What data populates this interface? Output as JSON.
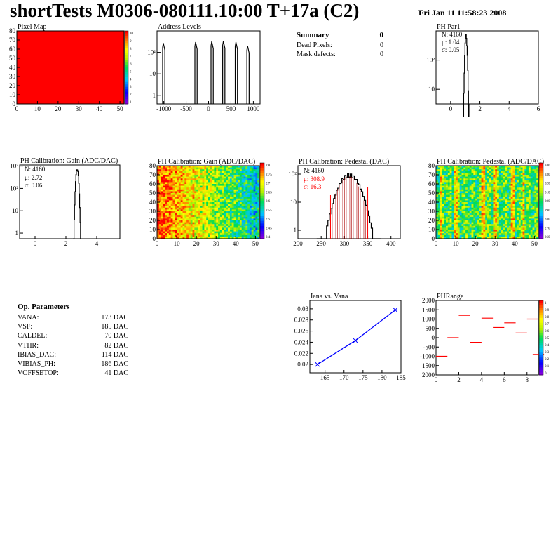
{
  "page": {
    "title": "shortTests M0306-080111.10:00 T+17a (C2)",
    "timestamp": "Fri Jan 11 11:58:23 2008"
  },
  "summary": {
    "title": "Summary",
    "count": "0",
    "rows": [
      {
        "label": "Dead Pixels:",
        "value": "0"
      },
      {
        "label": "Mask defects:",
        "value": "0"
      }
    ]
  },
  "op_params": {
    "title": "Op. Parameters",
    "rows": [
      {
        "name": "VANA:",
        "value": "173 DAC"
      },
      {
        "name": "VSF:",
        "value": "185 DAC"
      },
      {
        "name": "CALDEL:",
        "value": "70 DAC"
      },
      {
        "name": "VTHR:",
        "value": "82 DAC"
      },
      {
        "name": "IBIAS_DAC:",
        "value": "114 DAC"
      },
      {
        "name": "VIBIAS_PH:",
        "value": "186 DAC"
      },
      {
        "name": "VOFFSETOP:",
        "value": "41 DAC"
      }
    ]
  },
  "colors": {
    "frame": "#000000",
    "red": "#ff0000",
    "blue": "#0000ff",
    "dark_red": "#aa0000"
  },
  "chart_data": [
    {
      "id": "pixel_map",
      "type": "heatmap",
      "title": "Pixel Map",
      "xlim": [
        0,
        52
      ],
      "ylim": [
        0,
        80
      ],
      "xticks": [
        "0",
        "10",
        "20",
        "30",
        "40",
        "50"
      ],
      "yticks": [
        "0",
        "10",
        "20",
        "30",
        "40",
        "50",
        "60",
        "70",
        "80"
      ],
      "uniform_value": 10,
      "zticks": [
        "10",
        "9",
        "8",
        "7",
        "6",
        "5",
        "4",
        "3",
        "2",
        "1"
      ]
    },
    {
      "id": "address_levels",
      "type": "bar",
      "title": "Address Levels",
      "log_y": true,
      "xlim": [
        -1150,
        1150
      ],
      "xticks": [
        "-1000",
        "-500",
        "0",
        "500",
        "1000"
      ],
      "yticks": [
        "1",
        "10",
        "10²"
      ],
      "peaks": [
        {
          "x": -1000,
          "height": 270
        },
        {
          "x": -280,
          "height": 300
        },
        {
          "x": 80,
          "height": 320
        },
        {
          "x": 340,
          "height": 330
        },
        {
          "x": 620,
          "height": 300
        },
        {
          "x": 880,
          "height": 200
        }
      ]
    },
    {
      "id": "ph_par1",
      "type": "bar",
      "title": "PH Par1",
      "log_y": true,
      "xlim": [
        -1,
        6
      ],
      "xticks": [
        "0",
        "2",
        "4",
        "6"
      ],
      "yticks": [
        "10",
        "10²"
      ],
      "stats": {
        "n": "N: 4160",
        "mu": "μ: 1.04",
        "sigma": "σ: 0.05"
      },
      "mean": 1.04,
      "sigma_value": 0.05,
      "peak": 700
    },
    {
      "id": "gain_1d",
      "type": "bar",
      "title": "PH Calibration: Gain (ADC/DAC)",
      "log_y": true,
      "xlim": [
        -1,
        5.5
      ],
      "xticks": [
        "0",
        "2",
        "4"
      ],
      "yticks": [
        "1",
        "10",
        "10²",
        "10³"
      ],
      "stats": {
        "n": "N: 4160",
        "mu": "μ: 2.72",
        "sigma": "σ: 0.06"
      },
      "mean": 2.72,
      "sigma_value": 0.06,
      "peak": 750
    },
    {
      "id": "gain_2d",
      "type": "heatmap",
      "title": "PH Calibration: Gain (ADC/DAC)",
      "xlim": [
        0,
        52
      ],
      "ylim": [
        0,
        80
      ],
      "xticks": [
        "0",
        "10",
        "20",
        "30",
        "40",
        "50"
      ],
      "yticks": [
        "0",
        "10",
        "20",
        "30",
        "40",
        "50",
        "60",
        "70",
        "80"
      ],
      "zticks": [
        "2.8",
        "2.75",
        "2.7",
        "2.65",
        "2.6",
        "2.55",
        "2.5",
        "2.45",
        "2.4"
      ]
    },
    {
      "id": "pedestal_1d",
      "type": "bar",
      "title": "PH Calibration: Pedestal (DAC)",
      "log_y": true,
      "xlim": [
        200,
        420
      ],
      "xticks": [
        "200",
        "250",
        "300",
        "350",
        "400"
      ],
      "yticks": [
        "1",
        "10",
        "10²"
      ],
      "stats": {
        "n": "N: 4160",
        "mu": "μ: 308.9",
        "sigma": "σ: 16.3"
      },
      "mean": 308.9,
      "sigma_value": 16.3,
      "peak": 90,
      "fit_range": [
        270,
        350
      ]
    },
    {
      "id": "pedestal_2d",
      "type": "heatmap",
      "title": "PH Calibration: Pedestal (ADC/DAC)",
      "xlim": [
        0,
        52
      ],
      "ylim": [
        0,
        80
      ],
      "xticks": [
        "0",
        "10",
        "20",
        "30",
        "40",
        "50"
      ],
      "yticks": [
        "0",
        "10",
        "20",
        "30",
        "40",
        "50",
        "60",
        "70",
        "80"
      ],
      "zticks": [
        "340",
        "330",
        "320",
        "310",
        "300",
        "290",
        "280",
        "270",
        "260"
      ]
    },
    {
      "id": "iana_vana",
      "type": "line",
      "title": "Iana vs. Vana",
      "xlim": [
        161,
        185
      ],
      "ylim": [
        0.0185,
        0.0315
      ],
      "xticks": [
        "165",
        "170",
        "175",
        "180",
        "185"
      ],
      "yticks": [
        "0.02",
        "0.022",
        "0.024",
        "0.026",
        "0.028",
        "0.03"
      ],
      "x": [
        163,
        173,
        183.5
      ],
      "y": [
        0.02,
        0.0243,
        0.0298
      ]
    },
    {
      "id": "ph_range",
      "type": "heatmap",
      "title": "PHRange",
      "xlim": [
        0,
        9
      ],
      "ylim": [
        -2000,
        2000
      ],
      "xticks": [
        "0",
        "2",
        "4",
        "6",
        "8"
      ],
      "yticks": [
        "2000",
        "1500",
        "1000",
        "500",
        "0",
        "-500",
        "-1000",
        "1500",
        "2000"
      ],
      "zticks": [
        "1",
        "0.9",
        "0.8",
        "0.7",
        "0.6",
        "0.5",
        "0.4",
        "0.3",
        "0.2",
        "0.1",
        "0"
      ],
      "segments": [
        {
          "x": 0,
          "y": -1000
        },
        {
          "x": 1,
          "y": 0
        },
        {
          "x": 2,
          "y": 1200
        },
        {
          "x": 3,
          "y": -250
        },
        {
          "x": 4,
          "y": 1050
        },
        {
          "x": 5,
          "y": 550
        },
        {
          "x": 6,
          "y": 800
        },
        {
          "x": 7,
          "y": 250
        },
        {
          "x": 8,
          "y": 1000
        },
        {
          "x": 8.5,
          "y": -900
        }
      ]
    }
  ]
}
